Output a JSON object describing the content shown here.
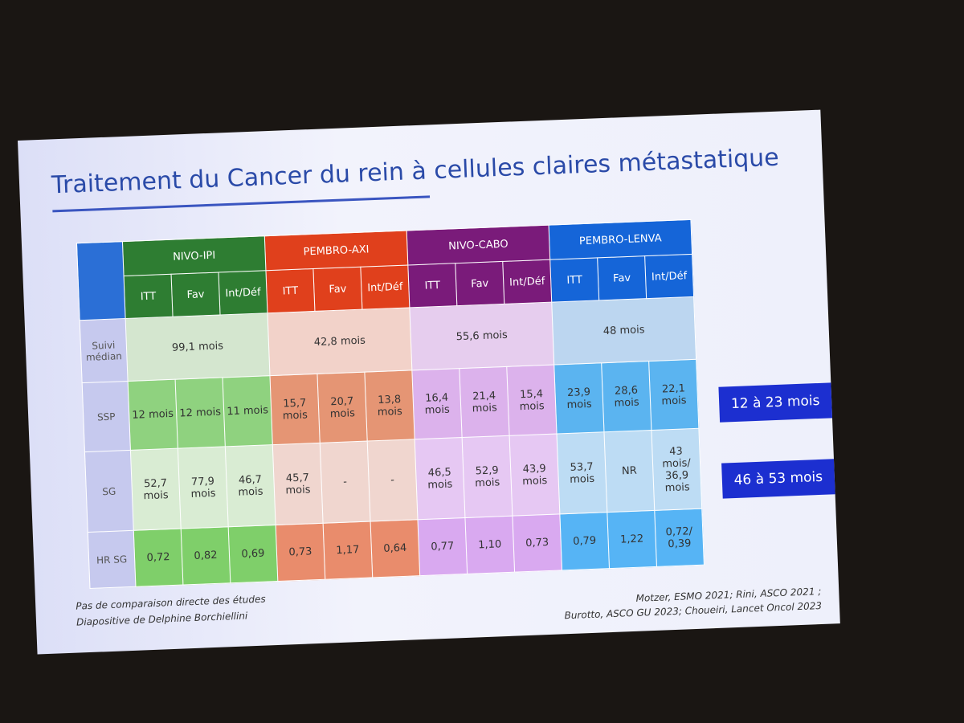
{
  "title": "Traitement du Cancer du rein à cellules claires métastatique",
  "table": {
    "groups": [
      {
        "name": "NIVO-IPI",
        "subheaders": [
          "ITT",
          "Fav",
          "Int/Déf"
        ]
      },
      {
        "name": "PEMBRO-AXI",
        "subheaders": [
          "ITT",
          "Fav",
          "Int/Déf"
        ]
      },
      {
        "name": "NIVO-CABO",
        "subheaders": [
          "ITT",
          "Fav",
          "Int/Déf"
        ]
      },
      {
        "name": "PEMBRO-LENVA",
        "subheaders": [
          "ITT",
          "Fav",
          "Int/Déf"
        ]
      }
    ],
    "rows": [
      {
        "label": "Suivi médian",
        "cells": [
          "99,1 mois",
          "42,8 mois",
          "55,6 mois",
          "48 mois"
        ]
      },
      {
        "label": "SSP",
        "cells": [
          "12 mois",
          "12 mois",
          "11 mois",
          "15,7 mois",
          "20,7 mois",
          "13,8 mois",
          "16,4 mois",
          "21,4 mois",
          "15,4 mois",
          "23,9 mois",
          "28,6 mois",
          "22,1 mois"
        ]
      },
      {
        "label": "SG",
        "cells": [
          "52,7 mois",
          "77,9 mois",
          "46,7 mois",
          "45,7 mois",
          "-",
          "-",
          "46,5 mois",
          "52,9 mois",
          "43,9 mois",
          "53,7 mois",
          "NR",
          "43 mois/ 36,9 mois"
        ]
      },
      {
        "label": "HR SG",
        "cells": [
          "0,72",
          "0,82",
          "0,69",
          "0,73",
          "1,17",
          "0,64",
          "0,77",
          "1,10",
          "0,73",
          "0,79",
          "1,22",
          "0,72/ 0,39"
        ]
      }
    ]
  },
  "highlights": [
    "12 à 23 mois",
    "46 à 53 mois"
  ],
  "notes": [
    "Pas de comparaison directe des études",
    "Diapositive de Delphine Borchiellini"
  ],
  "references": [
    "Motzer, ESMO 2021; Rini, ASCO 2021 ;",
    "Burotto, ASCO GU 2023;  Choueiri, Lancet Oncol 2023"
  ]
}
